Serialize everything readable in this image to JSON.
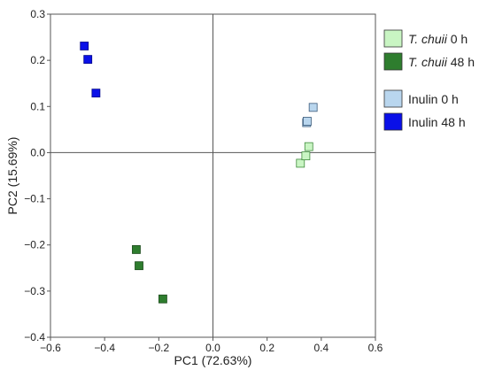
{
  "chart_data": {
    "type": "scatter",
    "xlabel": "PC1 (72.63%)",
    "ylabel": "PC2 (15.69%)",
    "xlim": [
      -0.6,
      0.6
    ],
    "ylim": [
      -0.4,
      0.3
    ],
    "xticks": [
      -0.6,
      -0.4,
      -0.2,
      0.0,
      0.2,
      0.4,
      0.6
    ],
    "yticks": [
      -0.4,
      -0.3,
      -0.2,
      -0.1,
      0.0,
      0.1,
      0.2,
      0.3
    ],
    "xtick_labels": [
      "−0.6",
      "−0.4",
      "−0.2",
      "0.0",
      "0.2",
      "0.4",
      "0.6"
    ],
    "ytick_labels": [
      "−0.4",
      "−0.3",
      "−0.2",
      "−0.1",
      "0.0",
      "0.1",
      "0.2",
      "0.3"
    ],
    "zero_lines": true,
    "grid": false,
    "legend_position": "right",
    "marker": "square",
    "series": [
      {
        "name_italic": "T. chuii",
        "name_rest": " 0 h",
        "color": "#c9f5c3",
        "edge": "#3f8a3c",
        "points": [
          [
            0.323,
            -0.023
          ],
          [
            0.343,
            -0.007
          ],
          [
            0.354,
            0.013
          ]
        ]
      },
      {
        "name_italic": "T. chuii",
        "name_rest": " 48 h",
        "color": "#2e7d2e",
        "edge": "#1a4a1a",
        "points": [
          [
            -0.283,
            -0.21
          ],
          [
            -0.273,
            -0.245
          ],
          [
            -0.185,
            -0.317
          ]
        ]
      },
      {
        "name_italic": "",
        "name_rest": "Inulin 0 h",
        "color": "#b9d6ee",
        "edge": "#3a5a7a",
        "points": [
          [
            0.346,
            0.065
          ],
          [
            0.348,
            0.068
          ],
          [
            0.37,
            0.098
          ]
        ]
      },
      {
        "name_italic": "",
        "name_rest": "Inulin 48 h",
        "color": "#0a10e8",
        "edge": "#05088a",
        "points": [
          [
            -0.475,
            0.231
          ],
          [
            -0.462,
            0.202
          ],
          [
            -0.432,
            0.129
          ]
        ]
      }
    ]
  }
}
